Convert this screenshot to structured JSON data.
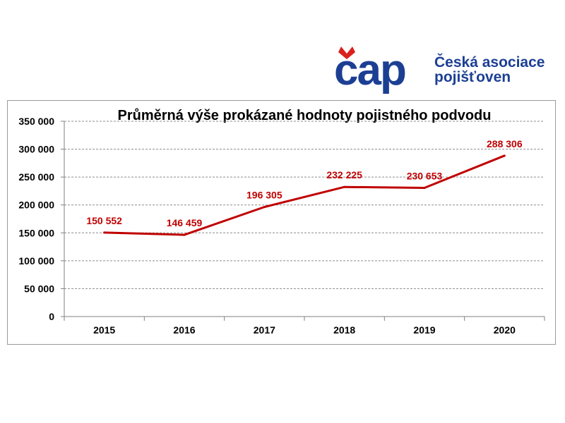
{
  "logo": {
    "wordmark": "čap",
    "name_line1": "Česká asociace",
    "name_line2": "pojišťoven",
    "brand_blue": "#1c3f94",
    "brand_red": "#d9211d"
  },
  "chart_data": {
    "type": "line",
    "title": "Průměrná výše prokázané hodnoty pojistného podvodu",
    "categories": [
      "2015",
      "2016",
      "2017",
      "2018",
      "2019",
      "2020"
    ],
    "values": [
      150552,
      146459,
      196305,
      232225,
      230653,
      288306
    ],
    "data_labels": [
      "150 552",
      "146 459",
      "196 305",
      "232 225",
      "230 653",
      "288 306"
    ],
    "yticks": [
      0,
      50000,
      100000,
      150000,
      200000,
      250000,
      300000,
      350000
    ],
    "ytick_labels": [
      "0",
      "50 000",
      "100 000",
      "150 000",
      "200 000",
      "250 000",
      "300 000",
      "350 000"
    ],
    "ylim": [
      0,
      350000
    ],
    "grid": true,
    "xlabel": "",
    "ylabel": "",
    "line_color": "#c00000",
    "label_color": "#c00000"
  }
}
